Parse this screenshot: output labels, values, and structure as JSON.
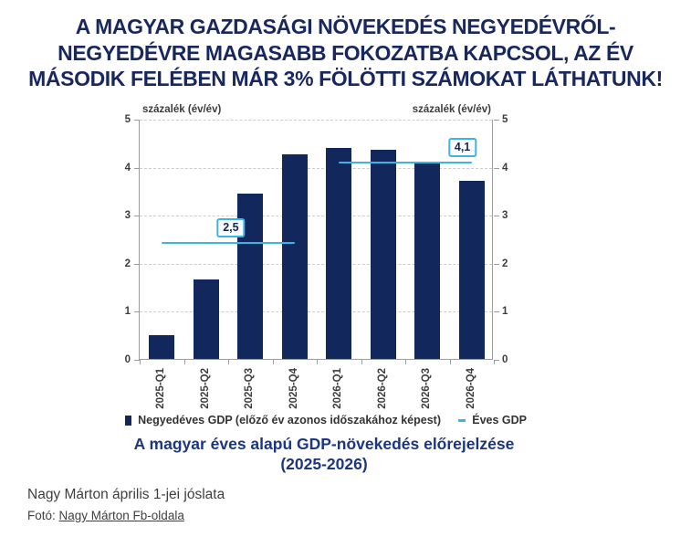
{
  "page": {
    "headline_lines": [
      "A MAGYAR GAZDASÁGI NÖVEKEDÉS NEGYEDÉVRŐL-",
      "NEGYEDÉVRE MAGASABB FOKOZATBA KAPCSOL, AZ ÉV",
      "MÁSODIK FELÉBEN MÁR 3% FÖLÖTTI SZÁMOKAT LÁTHATUNK!"
    ],
    "headline_color": "#18285f"
  },
  "chart_data": {
    "type": "bar",
    "title_lines": [
      "A magyar éves alapú GDP-növekedés előrejelzése",
      "(2025-2026)"
    ],
    "axis_title_left": "százalék (év/év)",
    "axis_title_right": "százalék (év/év)",
    "categories": [
      "2025-Q1",
      "2025-Q2",
      "2025-Q3",
      "2025-Q4",
      "2026-Q1",
      "2026-Q2",
      "2026-Q3",
      "2026-Q4"
    ],
    "series": [
      {
        "name": "Negyedéves GDP (előző év azonos időszakához képest)",
        "type": "bar",
        "color": "#12275c",
        "values": [
          0.5,
          1.65,
          3.45,
          4.25,
          4.4,
          4.35,
          4.1,
          3.7
        ]
      },
      {
        "name": "Éves GDP",
        "type": "line",
        "color": "#3eb4e6",
        "segments": [
          {
            "label": "2,5",
            "value": 2.5,
            "draw_value": 2.45,
            "from_cat": 0,
            "to_cat": 3,
            "label_frac": 0.52
          },
          {
            "label": "4,1",
            "value": 4.1,
            "draw_value": 4.12,
            "from_cat": 4,
            "to_cat": 7,
            "label_frac": 0.93
          }
        ]
      }
    ],
    "ylim": [
      0,
      5
    ],
    "yticks": [
      0,
      1,
      2,
      3,
      4,
      5
    ],
    "grid": "horizontal-dashed",
    "legend_position": "bottom"
  },
  "footer": {
    "caption": "Nagy Márton április 1-jei jóslata",
    "photo_label": "Fotó: ",
    "photo_link": "Nagy Márton Fb-oldala"
  }
}
